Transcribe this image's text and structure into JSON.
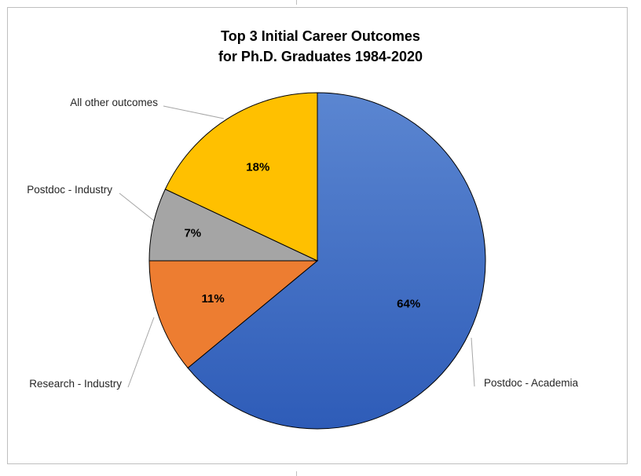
{
  "chart_data": {
    "type": "pie",
    "title": [
      "Top 3 Initial Career Outcomes",
      "for Ph.D. Graduates 1984-2020"
    ],
    "slices": [
      {
        "label": "Postdoc - Academia",
        "value": 64,
        "display": "64%",
        "color": "#4472c4"
      },
      {
        "label": "Research - Industry",
        "value": 11,
        "display": "11%",
        "color": "#ed7d31"
      },
      {
        "label": "Postdoc - Industry",
        "value": 7,
        "display": "7%",
        "color": "#a5a5a5"
      },
      {
        "label": "All other outcomes",
        "value": 18,
        "display": "18%",
        "color": "#ffc000"
      }
    ],
    "legend": "none",
    "data_labels": "inside-percent",
    "category_labels": "outside-with-leader-lines"
  }
}
